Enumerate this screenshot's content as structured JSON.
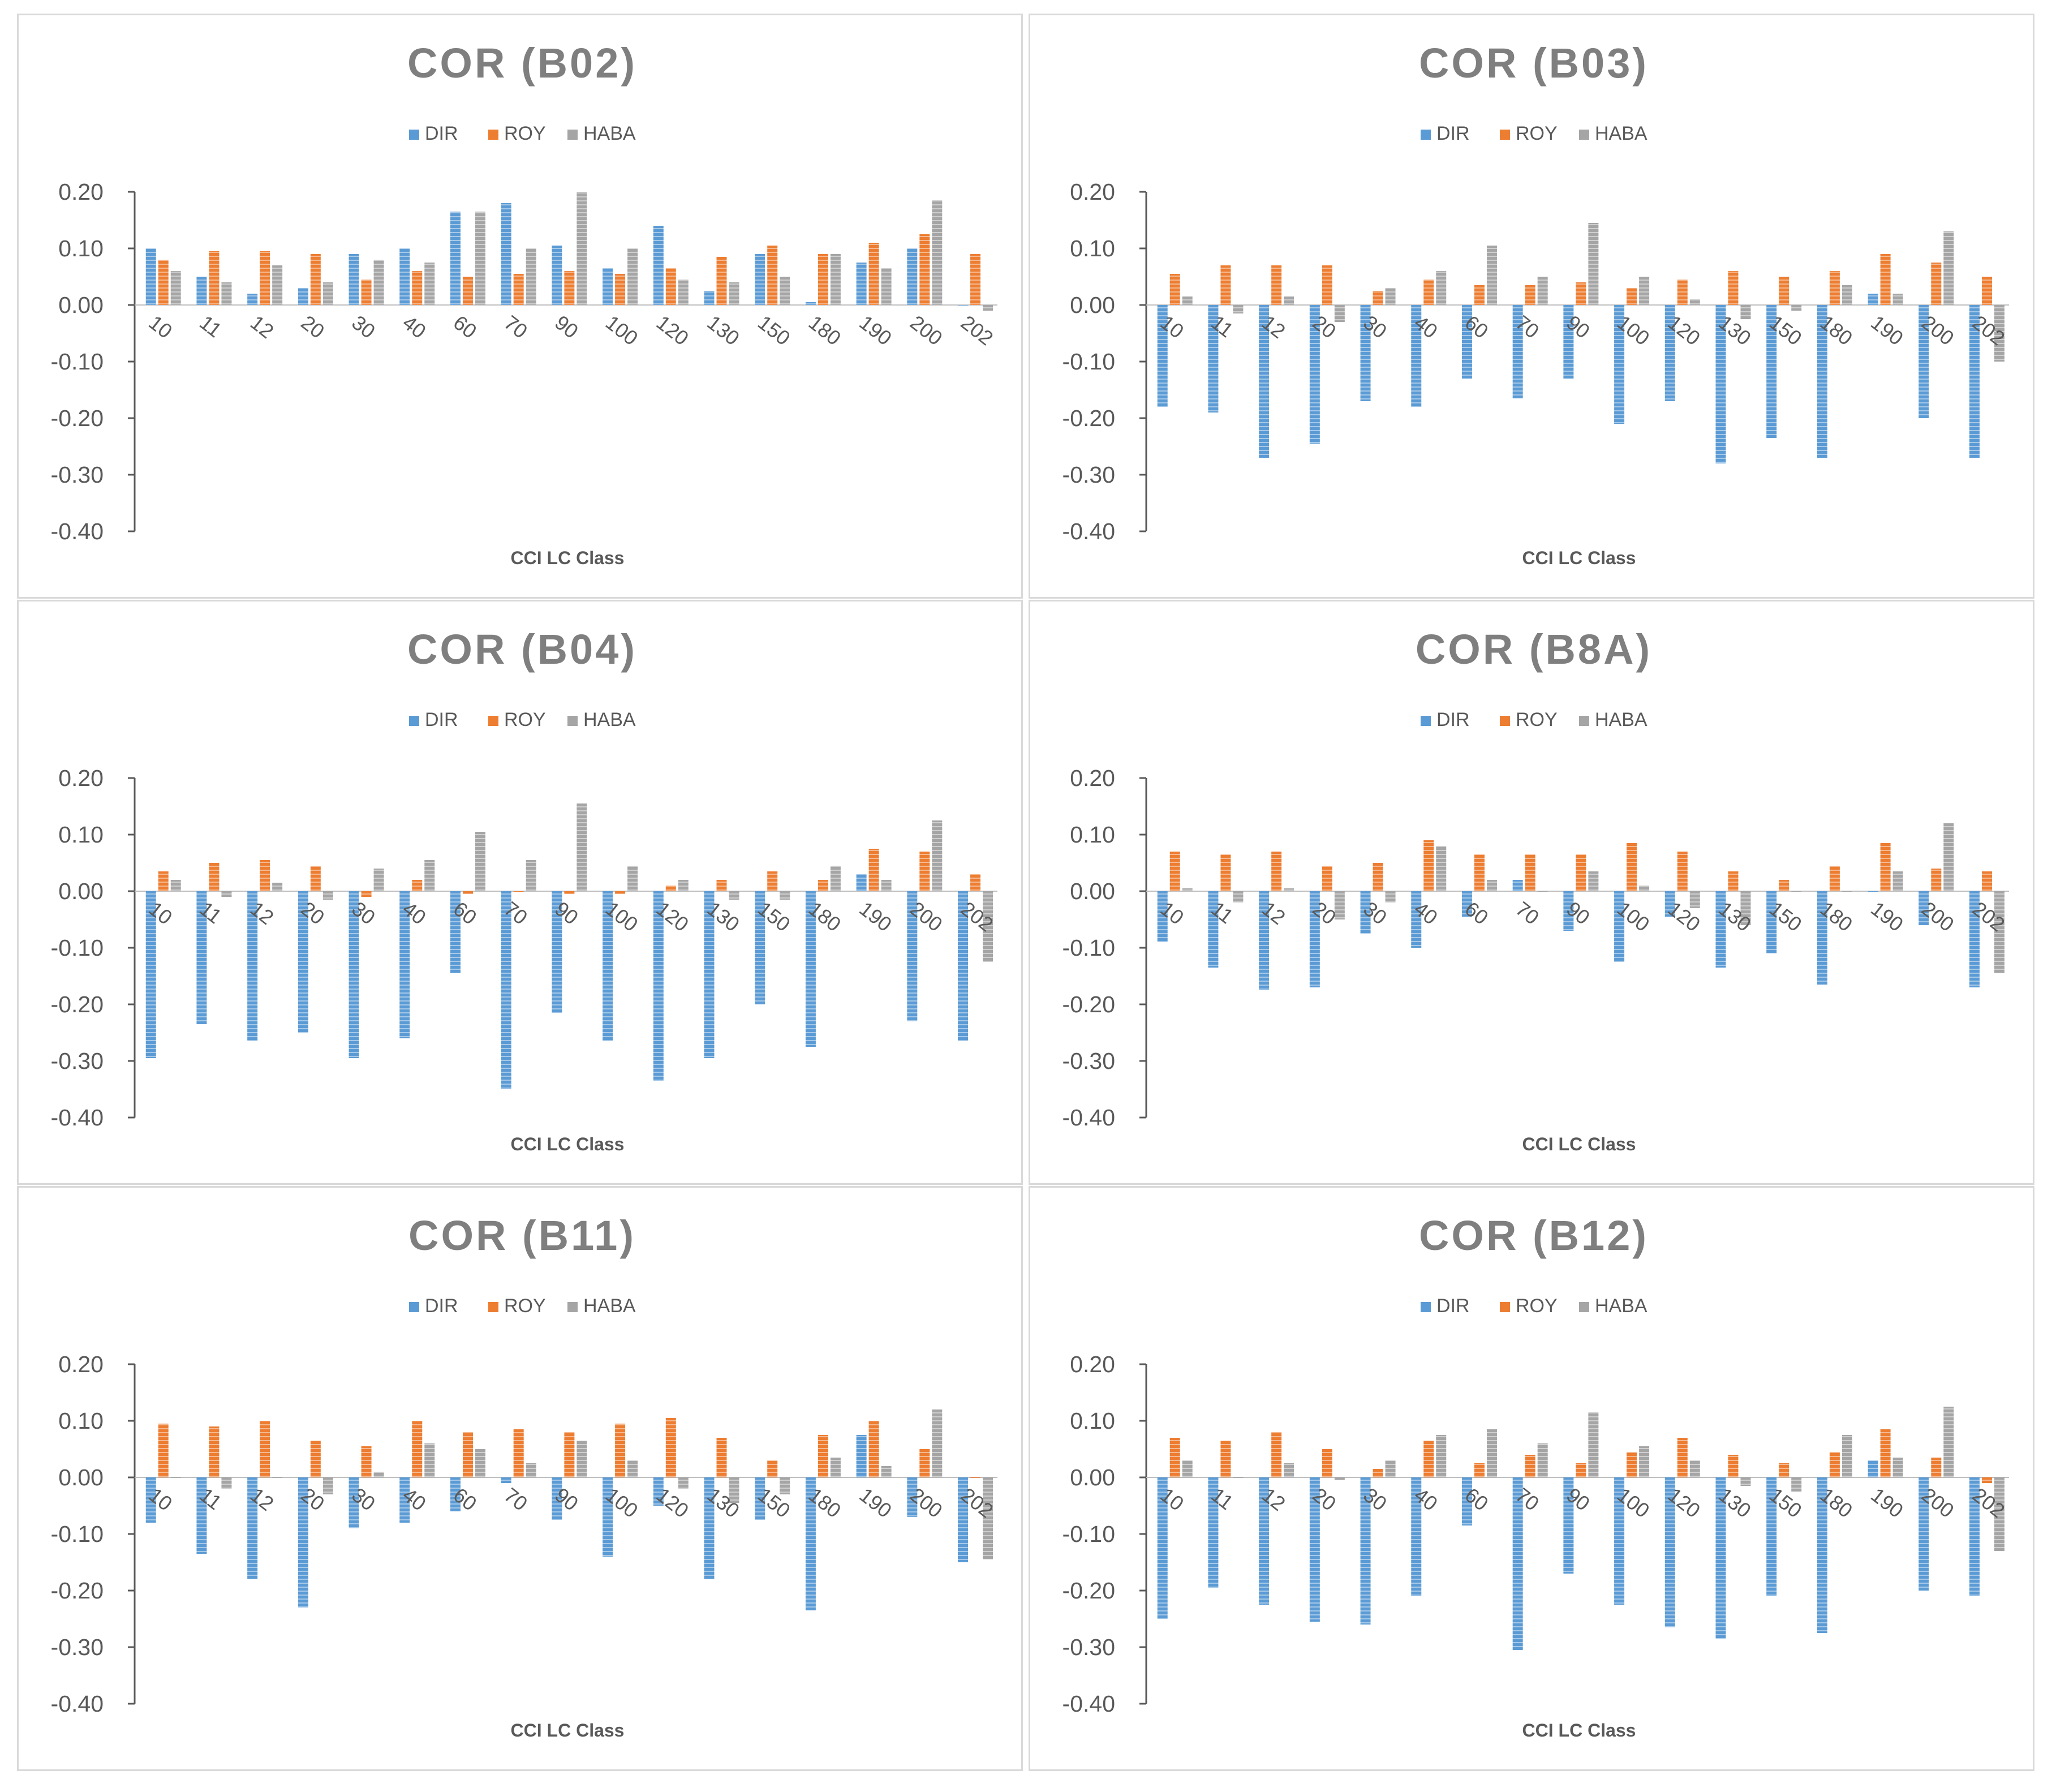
{
  "colors": {
    "DIR": "#5b9bd5",
    "ROY": "#ed7d31",
    "HABA": "#a5a5a5",
    "axis": "#595959",
    "text": "#595959",
    "title": "#7f7f7f"
  },
  "chart_data": [
    {
      "type": "bar",
      "title": "COR (B02)",
      "xlabel": "CCI LC Class",
      "ylabel": "",
      "ylim": [
        -0.4,
        0.2
      ],
      "yticks": [
        "0.20",
        "0.10",
        "0.00",
        "-0.10",
        "-0.20",
        "-0.30",
        "-0.40"
      ],
      "legend": [
        "DIR",
        "ROY",
        "HABA"
      ],
      "legend_position": "top-center",
      "categories": [
        "10",
        "11",
        "12",
        "20",
        "30",
        "40",
        "60",
        "70",
        "90",
        "100",
        "120",
        "130",
        "150",
        "180",
        "190",
        "200",
        "202"
      ],
      "series": [
        {
          "name": "DIR",
          "values": [
            0.1,
            0.05,
            0.02,
            0.03,
            0.09,
            0.1,
            0.165,
            0.18,
            0.105,
            0.065,
            0.14,
            0.025,
            0.09,
            0.005,
            0.075,
            0.1,
            0.0
          ]
        },
        {
          "name": "ROY",
          "values": [
            0.08,
            0.095,
            0.095,
            0.09,
            0.045,
            0.06,
            0.05,
            0.055,
            0.06,
            0.055,
            0.065,
            0.085,
            0.105,
            0.09,
            0.11,
            0.125,
            0.09
          ]
        },
        {
          "name": "HABA",
          "values": [
            0.06,
            0.04,
            0.07,
            0.04,
            0.08,
            0.075,
            0.165,
            0.1,
            0.2,
            0.1,
            0.045,
            0.04,
            0.05,
            0.09,
            0.065,
            0.185,
            -0.01
          ]
        }
      ]
    },
    {
      "type": "bar",
      "title": "COR (B03)",
      "xlabel": "CCI LC Class",
      "ylabel": "",
      "ylim": [
        -0.4,
        0.2
      ],
      "yticks": [
        "0.20",
        "0.10",
        "0.00",
        "-0.10",
        "-0.20",
        "-0.30",
        "-0.40"
      ],
      "legend": [
        "DIR",
        "ROY",
        "HABA"
      ],
      "legend_position": "top-center",
      "categories": [
        "10",
        "11",
        "12",
        "20",
        "30",
        "40",
        "60",
        "70",
        "90",
        "100",
        "120",
        "130",
        "150",
        "180",
        "190",
        "200",
        "202"
      ],
      "series": [
        {
          "name": "DIR",
          "values": [
            -0.18,
            -0.19,
            -0.27,
            -0.245,
            -0.17,
            -0.18,
            -0.13,
            -0.165,
            -0.13,
            -0.21,
            -0.17,
            -0.28,
            -0.235,
            -0.27,
            0.02,
            -0.2,
            -0.27
          ]
        },
        {
          "name": "ROY",
          "values": [
            0.055,
            0.07,
            0.07,
            0.07,
            0.025,
            0.045,
            0.035,
            0.035,
            0.04,
            0.03,
            0.045,
            0.06,
            0.05,
            0.06,
            0.09,
            0.075,
            0.05
          ]
        },
        {
          "name": "HABA",
          "values": [
            0.015,
            -0.015,
            0.015,
            -0.03,
            0.03,
            0.06,
            0.105,
            0.05,
            0.145,
            0.05,
            0.01,
            -0.025,
            -0.01,
            0.035,
            0.02,
            0.13,
            -0.1
          ]
        }
      ]
    },
    {
      "type": "bar",
      "title": "COR (B04)",
      "xlabel": "CCI LC Class",
      "ylabel": "",
      "ylim": [
        -0.4,
        0.2
      ],
      "yticks": [
        "0.20",
        "0.10",
        "0.00",
        "-0.10",
        "-0.20",
        "-0.30",
        "-0.40"
      ],
      "legend": [
        "DIR",
        "ROY",
        "HABA"
      ],
      "legend_position": "top-center",
      "categories": [
        "10",
        "11",
        "12",
        "20",
        "30",
        "40",
        "60",
        "70",
        "90",
        "100",
        "120",
        "130",
        "150",
        "180",
        "190",
        "200",
        "202"
      ],
      "series": [
        {
          "name": "DIR",
          "values": [
            -0.295,
            -0.235,
            -0.265,
            -0.25,
            -0.295,
            -0.26,
            -0.145,
            -0.35,
            -0.215,
            -0.265,
            -0.335,
            -0.295,
            -0.2,
            -0.275,
            0.03,
            -0.23,
            -0.265
          ]
        },
        {
          "name": "ROY",
          "values": [
            0.035,
            0.05,
            0.055,
            0.045,
            -0.01,
            0.02,
            -0.005,
            0.0,
            -0.005,
            -0.005,
            0.01,
            0.02,
            0.035,
            0.02,
            0.075,
            0.07,
            0.03
          ]
        },
        {
          "name": "HABA",
          "values": [
            0.02,
            -0.01,
            0.015,
            -0.015,
            0.04,
            0.055,
            0.105,
            0.055,
            0.155,
            0.045,
            0.02,
            -0.015,
            -0.015,
            0.045,
            0.02,
            0.125,
            -0.125
          ]
        }
      ]
    },
    {
      "type": "bar",
      "title": "COR (B8A)",
      "xlabel": "CCI LC Class",
      "ylabel": "",
      "ylim": [
        -0.4,
        0.2
      ],
      "yticks": [
        "0.20",
        "0.10",
        "0.00",
        "-0.10",
        "-0.20",
        "-0.30",
        "-0.40"
      ],
      "legend": [
        "DIR",
        "ROY",
        "HABA"
      ],
      "legend_position": "top-center",
      "categories": [
        "10",
        "11",
        "12",
        "20",
        "30",
        "40",
        "60",
        "70",
        "90",
        "100",
        "120",
        "130",
        "150",
        "180",
        "190",
        "200",
        "202"
      ],
      "series": [
        {
          "name": "DIR",
          "values": [
            -0.09,
            -0.135,
            -0.175,
            -0.17,
            -0.075,
            -0.1,
            -0.045,
            0.02,
            -0.07,
            -0.125,
            -0.045,
            -0.135,
            -0.11,
            -0.165,
            0.0,
            -0.06,
            -0.17
          ]
        },
        {
          "name": "ROY",
          "values": [
            0.07,
            0.065,
            0.07,
            0.045,
            0.05,
            0.09,
            0.065,
            0.065,
            0.065,
            0.085,
            0.07,
            0.035,
            0.02,
            0.045,
            0.085,
            0.04,
            0.035
          ]
        },
        {
          "name": "HABA",
          "values": [
            0.005,
            -0.02,
            0.005,
            -0.05,
            -0.02,
            0.08,
            0.02,
            0.0,
            0.035,
            0.01,
            -0.03,
            -0.06,
            0.0,
            0.0,
            0.035,
            0.12,
            -0.145
          ]
        }
      ]
    },
    {
      "type": "bar",
      "title": "COR (B11)",
      "xlabel": "CCI LC Class",
      "ylabel": "",
      "ylim": [
        -0.4,
        0.2
      ],
      "yticks": [
        "0.20",
        "0.10",
        "0.00",
        "-0.10",
        "-0.20",
        "-0.30",
        "-0.40"
      ],
      "legend": [
        "DIR",
        "ROY",
        "HABA"
      ],
      "legend_position": "top-center",
      "categories": [
        "10",
        "11",
        "12",
        "20",
        "30",
        "40",
        "60",
        "70",
        "90",
        "100",
        "120",
        "130",
        "150",
        "180",
        "190",
        "200",
        "202"
      ],
      "series": [
        {
          "name": "DIR",
          "values": [
            -0.08,
            -0.135,
            -0.18,
            -0.23,
            -0.09,
            -0.08,
            -0.06,
            -0.01,
            -0.075,
            -0.14,
            -0.05,
            -0.18,
            -0.075,
            -0.235,
            0.075,
            -0.07,
            -0.15
          ]
        },
        {
          "name": "ROY",
          "values": [
            0.095,
            0.09,
            0.1,
            0.065,
            0.055,
            0.1,
            0.08,
            0.085,
            0.08,
            0.095,
            0.105,
            0.07,
            0.03,
            0.075,
            0.1,
            0.05,
            0.0
          ]
        },
        {
          "name": "HABA",
          "values": [
            0.0,
            -0.02,
            0.0,
            -0.03,
            0.01,
            0.06,
            0.05,
            0.025,
            0.065,
            0.03,
            -0.02,
            -0.045,
            -0.03,
            0.035,
            0.02,
            0.12,
            -0.145
          ]
        }
      ]
    },
    {
      "type": "bar",
      "title": "COR (B12)",
      "xlabel": "CCI LC Class",
      "ylabel": "",
      "ylim": [
        -0.4,
        0.2
      ],
      "yticks": [
        "0.20",
        "0.10",
        "0.00",
        "-0.10",
        "-0.20",
        "-0.30",
        "-0.40"
      ],
      "legend": [
        "DIR",
        "ROY",
        "HABA"
      ],
      "legend_position": "top-center",
      "categories": [
        "10",
        "11",
        "12",
        "20",
        "30",
        "40",
        "60",
        "70",
        "90",
        "100",
        "120",
        "130",
        "150",
        "180",
        "190",
        "200",
        "202"
      ],
      "series": [
        {
          "name": "DIR",
          "values": [
            -0.25,
            -0.195,
            -0.225,
            -0.255,
            -0.26,
            -0.21,
            -0.085,
            -0.305,
            -0.17,
            -0.225,
            -0.265,
            -0.285,
            -0.21,
            -0.275,
            0.03,
            -0.2,
            -0.21
          ]
        },
        {
          "name": "ROY",
          "values": [
            0.07,
            0.065,
            0.08,
            0.05,
            0.015,
            0.065,
            0.025,
            0.04,
            0.025,
            0.045,
            0.07,
            0.04,
            0.025,
            0.045,
            0.085,
            0.035,
            -0.01
          ]
        },
        {
          "name": "HABA",
          "values": [
            0.03,
            0.0,
            0.025,
            -0.005,
            0.03,
            0.075,
            0.085,
            0.06,
            0.115,
            0.055,
            0.03,
            -0.015,
            -0.025,
            0.075,
            0.035,
            0.125,
            -0.13
          ]
        }
      ]
    }
  ]
}
